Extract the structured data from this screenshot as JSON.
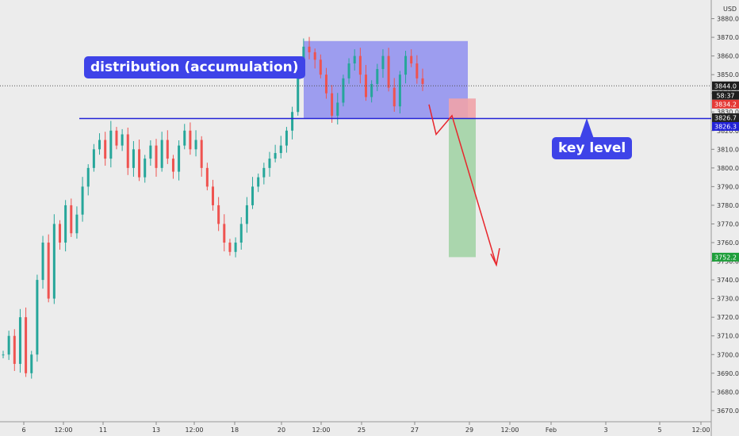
{
  "header": {
    "currency_label": "USD"
  },
  "chart_data": {
    "type": "candlestick",
    "title": "",
    "ylim": [
      3664,
      3890
    ],
    "y_ticks": [
      3670,
      3680,
      3690,
      3700,
      3710,
      3720,
      3730,
      3740,
      3750,
      3760,
      3770,
      3780,
      3790,
      3800,
      3810,
      3820,
      3830,
      3840,
      3850,
      3860,
      3870,
      3880
    ],
    "x_ticks": [
      "6",
      "12:00",
      "11",
      "13",
      "12:00",
      "18",
      "20",
      "12:00",
      "25",
      "27",
      "29",
      "12:00",
      "Feb",
      "3",
      "5",
      "12:00"
    ],
    "series": [
      {
        "values": [
          3700,
          3710,
          3695,
          3720,
          3690,
          3700,
          3740,
          3760,
          3730,
          3770,
          3760,
          3780,
          3765,
          3775,
          3790,
          3800,
          3810,
          3815,
          3805,
          3820,
          3812,
          3818,
          3800,
          3810,
          3795,
          3805,
          3812,
          3800,
          3815,
          3805,
          3798,
          3812,
          3820,
          3810,
          3815,
          3800,
          3790,
          3780,
          3770,
          3760,
          3755,
          3760,
          3770,
          3780,
          3790,
          3795,
          3800,
          3805,
          3808,
          3812,
          3820,
          3830,
          3855,
          3865,
          3862,
          3858,
          3850,
          3840,
          3828,
          3835,
          3848,
          3856,
          3860,
          3850,
          3838,
          3845,
          3853,
          3860,
          3843,
          3833,
          3850,
          3860,
          3856,
          3848,
          3845
        ]
      }
    ],
    "price_labels": {
      "current_price": "3844.0",
      "countdown": "58:37",
      "entry": "3834.2",
      "key_level_upper": "3826.7",
      "key_level_lower": "3826.3",
      "target": "3752.2"
    },
    "levels": {
      "current": 3844.0,
      "key_level": 3826.5,
      "stop": 3834.2,
      "target": 3752.2,
      "distribution_high": 3868,
      "distribution_low": 3826.5
    },
    "annotations": {
      "distribution": "distribution (accumulation)",
      "key_level": "key level"
    },
    "colors": {
      "up": "#26a69a",
      "down": "#ef5350",
      "key_level_line": "#2322d6",
      "distribution_box": "#8f8ff0",
      "stop_zone": "#f1a3a8",
      "target_zone": "#a3d4a6",
      "projection": "#e8262c",
      "callout_bg": "#3e43e8"
    }
  }
}
